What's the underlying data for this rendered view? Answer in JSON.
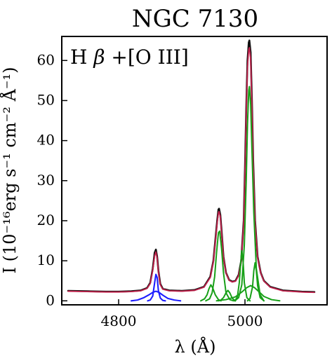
{
  "chart_data": {
    "type": "line",
    "title": "NGC 7130",
    "panel_label": {
      "prefix": "H",
      "beta": "β",
      "suffix": "+[O III]"
    },
    "xlabel": "λ (Å)",
    "ylabel": "I (10⁻¹⁶erg s⁻¹ cm⁻² Å⁻¹)",
    "xlim": [
      4710,
      5130
    ],
    "ylim": [
      -1,
      66
    ],
    "x_ticks": [
      4800,
      5000
    ],
    "y_ticks": [
      0,
      10,
      20,
      30,
      40,
      50,
      60
    ],
    "x_tick_labels": [
      "4800",
      "5000"
    ],
    "y_tick_labels": [
      "0",
      "10",
      "20",
      "30",
      "40",
      "50",
      "60"
    ],
    "colors": {
      "observed": "#111111",
      "model": "#c0204a",
      "hbeta": "#1e1eff",
      "oiii": "#18a018",
      "frame": "#000000"
    },
    "series": [
      {
        "name": "observed",
        "x": [
          4720,
          4750,
          4780,
          4800,
          4820,
          4835,
          4845,
          4850,
          4854,
          4857,
          4859,
          4861,
          4863,
          4866,
          4870,
          4880,
          4900,
          4920,
          4935,
          4945,
          4950,
          4953,
          4956,
          4958,
          4959,
          4961,
          4963,
          4966,
          4970,
          4975,
          4980,
          4985,
          4990,
          4994,
          4998,
          5000,
          5002,
          5004,
          5006,
          5007,
          5009,
          5011,
          5013,
          5016,
          5020,
          5025,
          5030,
          5040,
          5060,
          5090,
          5110
        ],
        "y": [
          2.5,
          2.4,
          2.3,
          2.3,
          2.4,
          2.6,
          3.2,
          4.5,
          8.0,
          12.0,
          12.8,
          11.0,
          7.5,
          4.2,
          3.0,
          2.6,
          2.5,
          2.7,
          3.5,
          6.0,
          10.0,
          15.0,
          20.0,
          22.8,
          23.0,
          21.5,
          17.5,
          11.0,
          7.0,
          5.2,
          4.8,
          5.0,
          6.5,
          10.0,
          20.0,
          33.0,
          48.0,
          60.0,
          64.5,
          65.0,
          62.0,
          50.0,
          35.0,
          20.0,
          11.0,
          7.0,
          5.0,
          3.5,
          2.6,
          2.3,
          2.2
        ]
      },
      {
        "name": "model",
        "x": [
          4720,
          4750,
          4780,
          4800,
          4820,
          4835,
          4845,
          4850,
          4854,
          4857,
          4859,
          4861,
          4863,
          4866,
          4870,
          4880,
          4900,
          4920,
          4935,
          4945,
          4950,
          4953,
          4956,
          4958,
          4959,
          4961,
          4963,
          4966,
          4970,
          4975,
          4980,
          4985,
          4990,
          4994,
          4998,
          5000,
          5002,
          5004,
          5006,
          5007,
          5009,
          5011,
          5013,
          5016,
          5020,
          5025,
          5030,
          5040,
          5060,
          5090,
          5110
        ],
        "y": [
          2.4,
          2.3,
          2.2,
          2.2,
          2.3,
          2.5,
          3.1,
          4.3,
          7.6,
          11.2,
          12.2,
          10.6,
          7.2,
          4.0,
          2.9,
          2.5,
          2.4,
          2.6,
          3.4,
          5.8,
          9.8,
          14.6,
          19.5,
          22.0,
          22.3,
          21.0,
          17.0,
          10.8,
          6.9,
          5.1,
          4.7,
          4.9,
          6.3,
          9.7,
          19.5,
          32.0,
          47.0,
          58.5,
          62.8,
          63.2,
          60.4,
          48.8,
          34.2,
          19.6,
          10.8,
          6.9,
          4.9,
          3.4,
          2.5,
          2.2,
          2.1
        ]
      },
      {
        "name": "hbeta-narrow",
        "x": [
          4846,
          4850,
          4854,
          4857,
          4859,
          4861,
          4863,
          4866,
          4870,
          4874
        ],
        "y": [
          0.0,
          0.2,
          1.2,
          4.5,
          6.6,
          5.8,
          2.5,
          0.7,
          0.1,
          0.0
        ]
      },
      {
        "name": "hbeta-broad",
        "x": [
          4820,
          4830,
          4840,
          4848,
          4854,
          4859,
          4864,
          4870,
          4878,
          4888,
          4898
        ],
        "y": [
          0.0,
          0.2,
          0.8,
          1.5,
          2.1,
          2.4,
          2.1,
          1.4,
          0.6,
          0.2,
          0.0
        ]
      },
      {
        "name": "oiii-4959-main",
        "x": [
          4938,
          4944,
          4948,
          4952,
          4955,
          4958,
          4960,
          4963,
          4966,
          4970,
          4976,
          4982
        ],
        "y": [
          0.0,
          0.5,
          2.0,
          6.0,
          12.0,
          17.0,
          17.4,
          13.0,
          7.0,
          2.0,
          0.3,
          0.0
        ]
      },
      {
        "name": "oiii-4959-blue",
        "x": [
          4930,
          4936,
          4940,
          4943,
          4946,
          4949,
          4953,
          4958,
          4962
        ],
        "y": [
          0.0,
          0.5,
          1.5,
          3.0,
          4.0,
          3.2,
          1.5,
          0.3,
          0.0
        ]
      },
      {
        "name": "oiii-4959-red",
        "x": [
          4958,
          4962,
          4966,
          4970,
          4973,
          4976,
          4980,
          4985
        ],
        "y": [
          0.0,
          0.2,
          0.8,
          2.0,
          2.6,
          2.0,
          0.6,
          0.0
        ]
      },
      {
        "name": "oiii-5007-main",
        "x": [
          4984,
          4990,
          4995,
          4999,
          5002,
          5004,
          5006,
          5007,
          5009,
          5011,
          5014,
          5018,
          5024,
          5030
        ],
        "y": [
          0.0,
          0.8,
          4.0,
          14.0,
          30.0,
          44.0,
          52.5,
          53.5,
          49.0,
          38.0,
          22.0,
          8.0,
          1.5,
          0.0
        ]
      },
      {
        "name": "oiii-5007-blue",
        "x": [
          4984,
          4988,
          4991,
          4993,
          4995,
          4997,
          4999,
          5003,
          5008
        ],
        "y": [
          0.0,
          1.0,
          4.5,
          9.0,
          12.5,
          10.0,
          4.5,
          0.8,
          0.0
        ]
      },
      {
        "name": "oiii-5007-red",
        "x": [
          5004,
          5008,
          5012,
          5014,
          5016,
          5018,
          5020,
          5024,
          5030
        ],
        "y": [
          0.0,
          0.6,
          3.5,
          7.5,
          9.5,
          7.5,
          3.8,
          0.8,
          0.0
        ]
      },
      {
        "name": "oiii-broad",
        "x": [
          4955,
          4970,
          4985,
          4995,
          5003,
          5009,
          5015,
          5022,
          5030,
          5042,
          5055
        ],
        "y": [
          0.0,
          0.3,
          1.0,
          2.2,
          3.3,
          3.8,
          3.3,
          2.3,
          1.1,
          0.3,
          0.0
        ]
      }
    ]
  }
}
